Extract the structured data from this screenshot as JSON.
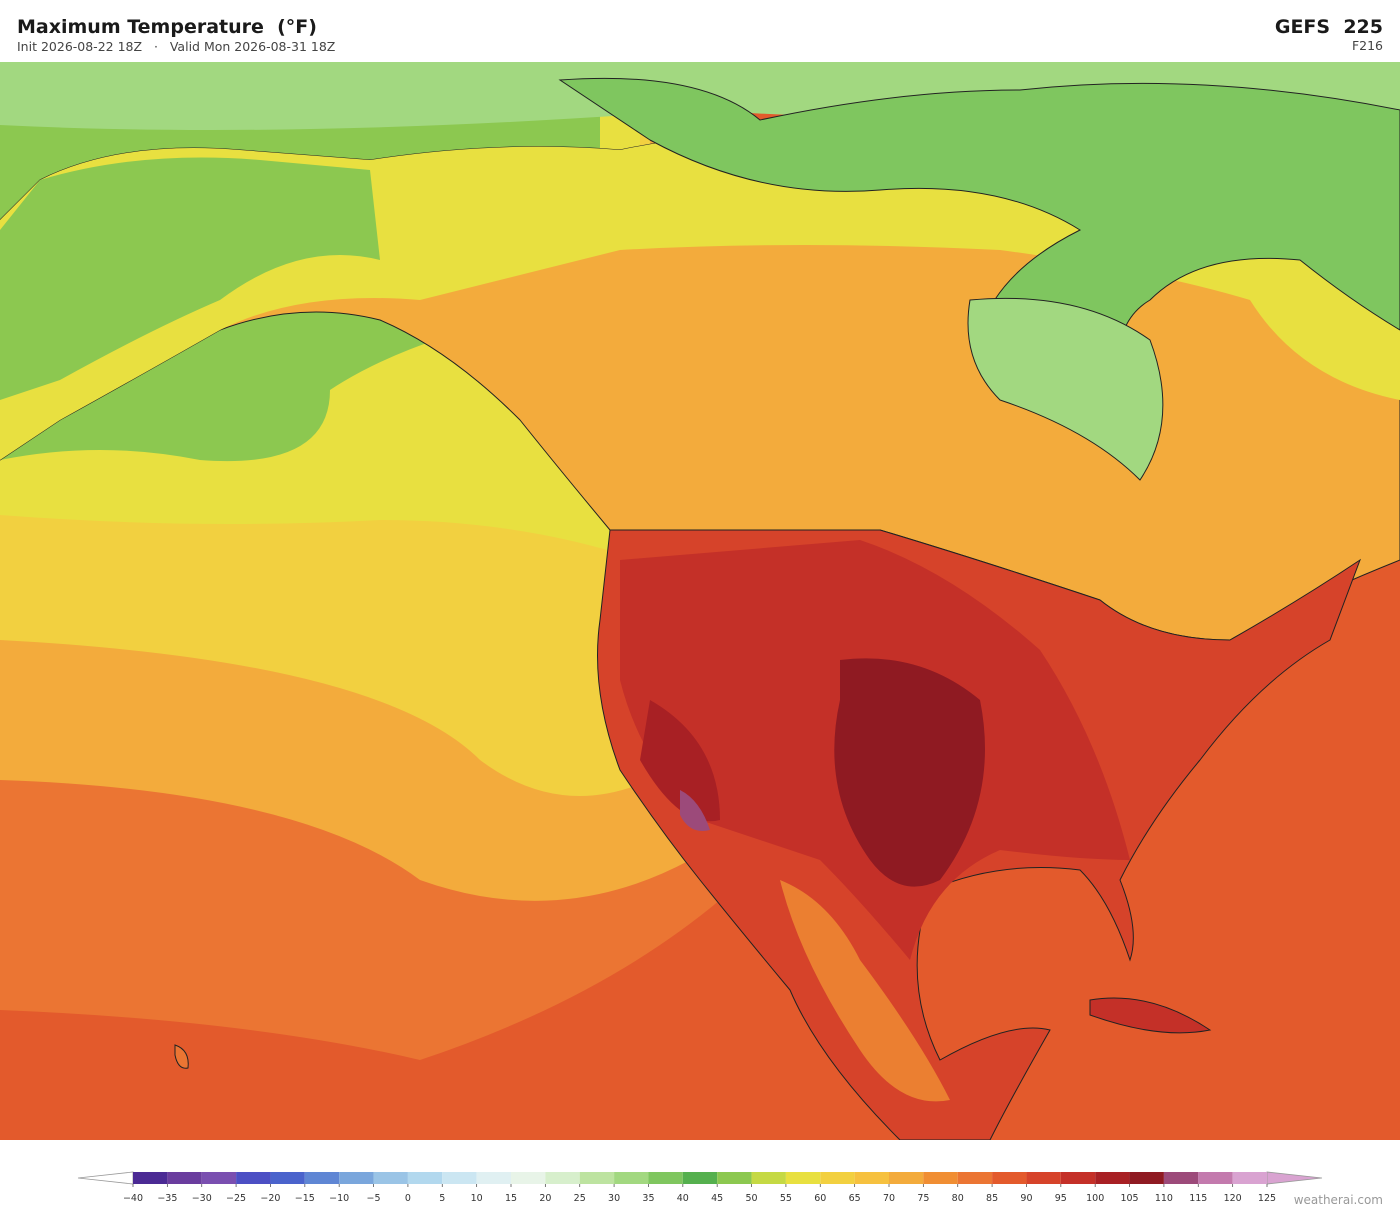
{
  "header": {
    "title": "Maximum Temperature  (°F)",
    "subtitle": "Init 2026-08-22 18Z   ·   Valid Mon 2026-08-31 18Z",
    "model": "GEFS  225",
    "forecast_hour": "F216"
  },
  "colorbar": {
    "range": [
      -40,
      125
    ],
    "ticks": [
      {
        "value": -40,
        "label": "−40"
      },
      {
        "value": -35,
        "label": "−35"
      },
      {
        "value": -30,
        "label": "−30"
      },
      {
        "value": -25,
        "label": "−25"
      },
      {
        "value": -20,
        "label": "−20"
      },
      {
        "value": -15,
        "label": "−15"
      },
      {
        "value": -10,
        "label": "−10"
      },
      {
        "value": -5,
        "label": "−5"
      },
      0,
      5,
      10,
      15,
      20,
      25,
      30,
      35,
      40,
      45,
      50,
      55,
      60,
      65,
      70,
      75,
      80,
      85,
      90,
      95,
      100,
      105,
      110,
      115,
      120,
      125
    ],
    "colors": [
      "#4b2a94",
      "#6a3d9e",
      "#7a4fb0",
      "#4c4fc4",
      "#4a63cc",
      "#5f86d4",
      "#7aa6dc",
      "#9ac4e6",
      "#b2d8ee",
      "#cbe6f2",
      "#e0f0f2",
      "#e8f4e8",
      "#d7efcc",
      "#bde3a0",
      "#a2d880",
      "#7fc65f",
      "#55b04e",
      "#8cc850",
      "#c5d944",
      "#e8e040",
      "#f2d040",
      "#f6c13f",
      "#f3ab3c",
      "#f08e33",
      "#eb7533",
      "#e35a2c",
      "#d6432a",
      "#c43028",
      "#a82024",
      "#8f1a22",
      "#9c4a7a",
      "#c37aad",
      "#d9a3d1"
    ]
  },
  "watermark": "weatherai.com"
}
